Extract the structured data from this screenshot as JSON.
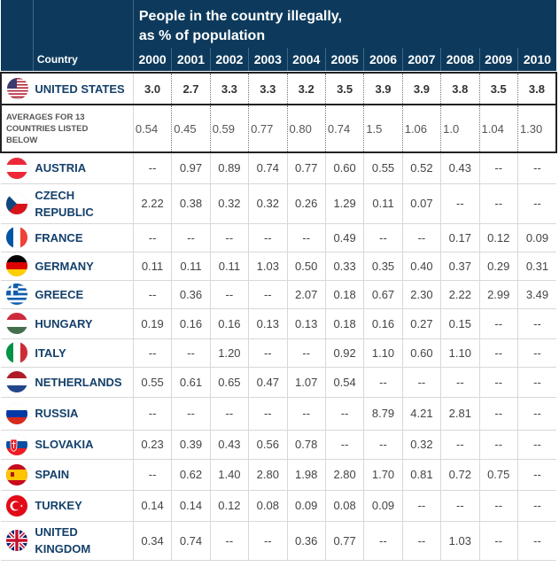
{
  "chart_data": {
    "type": "table",
    "title": "People in the country illegally,",
    "subtitle": "as % of population",
    "country_header": "Country",
    "years": [
      "2000",
      "2001",
      "2002",
      "2003",
      "2004",
      "2005",
      "2006",
      "2007",
      "2008",
      "2009",
      "2010"
    ],
    "highlight": {
      "name": "UNITED STATES",
      "flag": "us-flag-icon",
      "values": [
        "3.0",
        "2.7",
        "3.3",
        "3.3",
        "3.2",
        "3.5",
        "3.9",
        "3.9",
        "3.8",
        "3.5",
        "3.8"
      ]
    },
    "averages": {
      "label_line1": "AVERAGES FOR 13",
      "label_line2": "COUNTRIES LISTED",
      "label_line3": "BELOW",
      "values": [
        "0.54",
        "0.45",
        "0.59",
        "0.77",
        "0.80",
        "0.74",
        "1.5",
        "1.06",
        "1.0",
        "1.04",
        "1.30"
      ]
    },
    "rows": [
      {
        "name1": "AUSTRIA",
        "name2": "",
        "flag": "austria-flag-icon",
        "values": [
          "--",
          "0.97",
          "0.89",
          "0.74",
          "0.77",
          "0.60",
          "0.55",
          "0.52",
          "0.43",
          "--",
          "--"
        ]
      },
      {
        "name1": "CZECH",
        "name2": "REPUBLIC",
        "flag": "czech-flag-icon",
        "values": [
          "2.22",
          "0.38",
          "0.32",
          "0.32",
          "0.26",
          "1.29",
          "0.11",
          "0.07",
          "--",
          "--",
          "--"
        ]
      },
      {
        "name1": "FRANCE",
        "name2": "",
        "flag": "france-flag-icon",
        "values": [
          "--",
          "--",
          "--",
          "--",
          "--",
          "0.49",
          "--",
          "--",
          "0.17",
          "0.12",
          "0.09"
        ]
      },
      {
        "name1": "GERMANY",
        "name2": "",
        "flag": "germany-flag-icon",
        "values": [
          "0.11",
          "0.11",
          "0.11",
          "1.03",
          "0.50",
          "0.33",
          "0.35",
          "0.40",
          "0.37",
          "0.29",
          "0.31"
        ]
      },
      {
        "name1": "GREECE",
        "name2": "",
        "flag": "greece-flag-icon",
        "values": [
          "--",
          "0.36",
          "--",
          "--",
          "2.07",
          "0.18",
          "0.67",
          "2.30",
          "2.22",
          "2.99",
          "3.49"
        ]
      },
      {
        "name1": "HUNGARY",
        "name2": "",
        "flag": "hungary-flag-icon",
        "values": [
          "0.19",
          "0.16",
          "0.16",
          "0.13",
          "0.13",
          "0.18",
          "0.16",
          "0.27",
          "0.15",
          "--",
          "--"
        ]
      },
      {
        "name1": "ITALY",
        "name2": "",
        "flag": "italy-flag-icon",
        "values": [
          "--",
          "--",
          "1.20",
          "--",
          "--",
          "0.92",
          "1.10",
          "0.60",
          "1.10",
          "--",
          "--"
        ]
      },
      {
        "name1": "NETHERLANDS",
        "name2": "",
        "flag": "netherlands-flag-icon",
        "values": [
          "0.55",
          "0.61",
          "0.65",
          "0.47",
          "1.07",
          "0.54",
          "--",
          "--",
          "--",
          "--",
          "--"
        ]
      },
      {
        "name1": "RUSSIA",
        "name2": "",
        "flag": "russia-flag-icon",
        "values": [
          "--",
          "--",
          "--",
          "--",
          "--",
          "--",
          "8.79",
          "4.21",
          "2.81",
          "--",
          "--"
        ]
      },
      {
        "name1": "SLOVAKIA",
        "name2": "",
        "flag": "slovakia-flag-icon",
        "values": [
          "0.23",
          "0.39",
          "0.43",
          "0.56",
          "0.78",
          "--",
          "--",
          "0.32",
          "--",
          "--",
          "--"
        ]
      },
      {
        "name1": "SPAIN",
        "name2": "",
        "flag": "spain-flag-icon",
        "values": [
          "--",
          "0.62",
          "1.40",
          "2.80",
          "1.98",
          "2.80",
          "1.70",
          "0.81",
          "0.72",
          "0.75",
          "--"
        ]
      },
      {
        "name1": "TURKEY",
        "name2": "",
        "flag": "turkey-flag-icon",
        "values": [
          "0.14",
          "0.14",
          "0.12",
          "0.08",
          "0.09",
          "0.08",
          "0.09",
          "--",
          "--",
          "--",
          "--"
        ]
      },
      {
        "name1": "UNITED",
        "name2": "KINGDOM",
        "flag": "uk-flag-icon",
        "values": [
          "0.34",
          "0.74",
          "--",
          "--",
          "0.36",
          "0.77",
          "--",
          "--",
          "1.03",
          "--",
          "--"
        ]
      }
    ]
  }
}
